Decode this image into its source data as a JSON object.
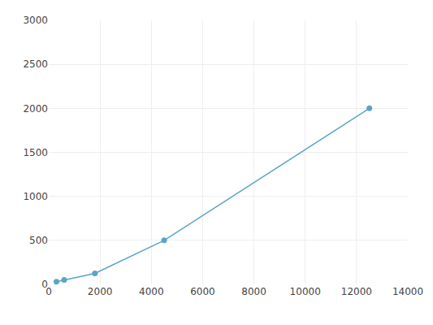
{
  "chart_data": {
    "type": "line",
    "x": [
      300,
      600,
      1800,
      4500,
      12500
    ],
    "values": [
      30,
      50,
      125,
      500,
      2000
    ],
    "color": "#5BA3C9",
    "marker": "circle",
    "xlim": [
      0,
      14000
    ],
    "ylim": [
      0,
      3000
    ],
    "xticks": [
      0,
      2000,
      4000,
      6000,
      8000,
      10000,
      12000,
      14000
    ],
    "yticks": [
      0,
      500,
      1000,
      1500,
      2000,
      2500,
      3000
    ],
    "grid": true
  }
}
